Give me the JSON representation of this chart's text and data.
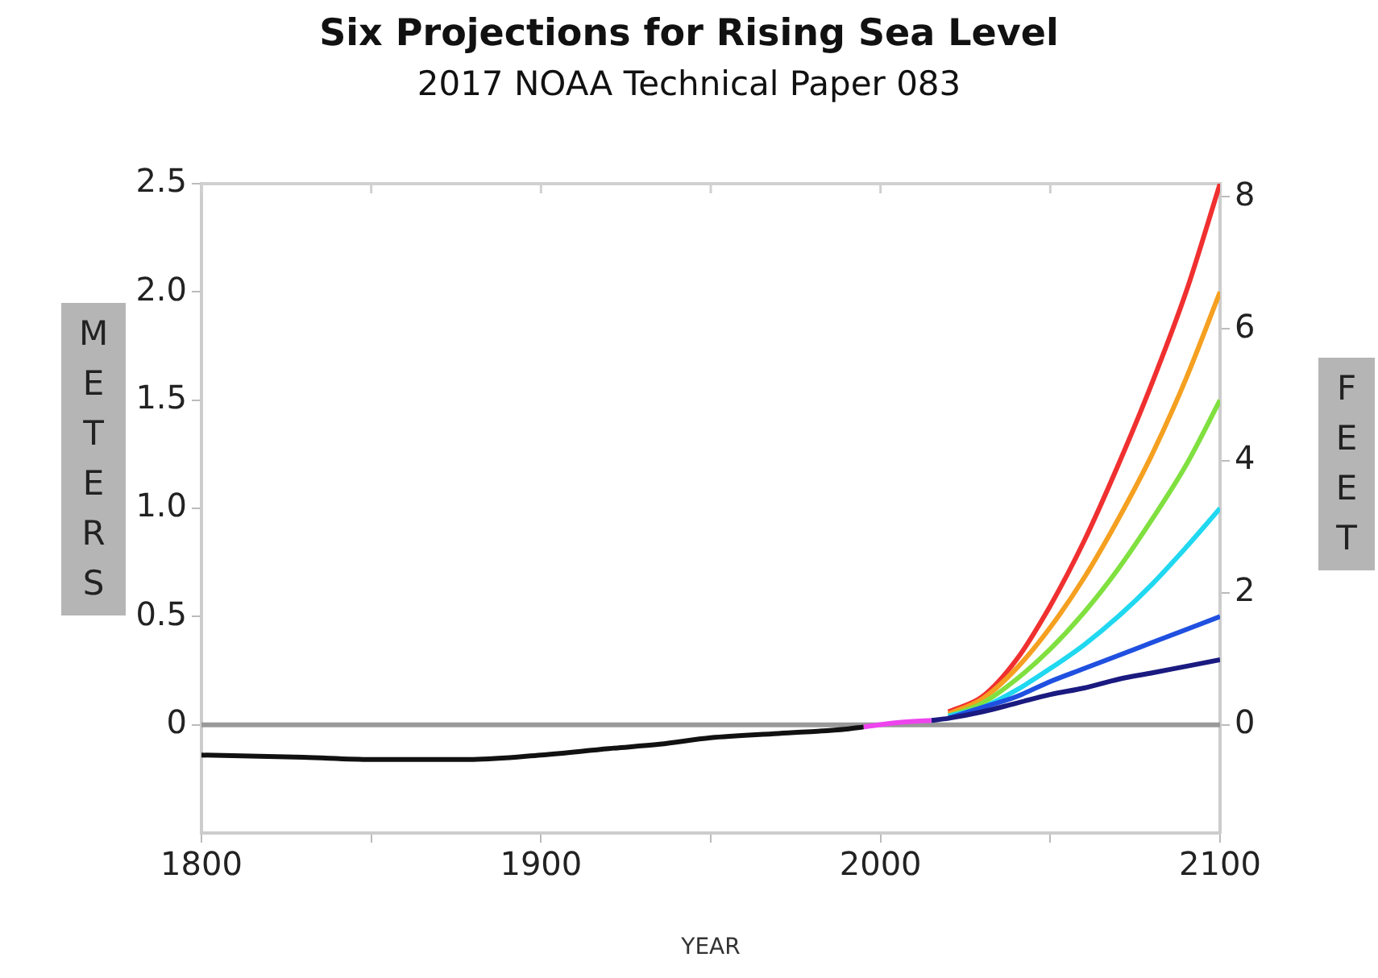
{
  "chart_data": {
    "type": "line",
    "title": "Six Projections for Rising Sea Level",
    "subtitle": "2017 NOAA Technical Paper 083",
    "xlabel": "YEAR",
    "ylabel": "METERS",
    "y2label": "FEET",
    "xlim": [
      1800,
      2100
    ],
    "xticks": [
      1800,
      {
        "value": 1850,
        "label": null
      },
      1900,
      {
        "value": 1950,
        "label": null
      },
      2000,
      {
        "value": 2050,
        "label": null
      },
      2100
    ],
    "ylim": [
      -0.5,
      2.5
    ],
    "yticks": [
      0,
      0.5,
      {
        "value": 1,
        "label": "1.0"
      },
      1.5,
      {
        "value": 2,
        "label": "2.0"
      },
      2.5
    ],
    "y2lim": [
      -1.64,
      8.2
    ],
    "y2ticks": [
      0,
      2,
      4,
      6,
      8
    ],
    "ref_lines": [
      {
        "axis": "y",
        "value": 0,
        "color": "#999999"
      }
    ],
    "series": [
      {
        "color": "#111111",
        "x": [
          1800,
          1830,
          1850,
          1880,
          1900,
          1920,
          1935,
          1950,
          1970,
          1990,
          1995
        ],
        "values": [
          -0.14,
          -0.15,
          -0.16,
          -0.16,
          -0.14,
          -0.11,
          -0.09,
          -0.06,
          -0.04,
          -0.02,
          -0.01
        ]
      },
      {
        "color": "#ee44ee",
        "x": [
          1995,
          2005,
          2015
        ],
        "values": [
          -0.01,
          0.01,
          0.02
        ]
      },
      {
        "color": "#1a1a80",
        "x": [
          2015,
          2020,
          2030,
          2040,
          2050,
          2060,
          2070,
          2080,
          2090,
          2100
        ],
        "values": [
          0.02,
          0.03,
          0.06,
          0.1,
          0.14,
          0.17,
          0.21,
          0.24,
          0.27,
          0.3
        ]
      },
      {
        "color": "#2050e0",
        "x": [
          2020,
          2030,
          2040,
          2050,
          2060,
          2070,
          2080,
          2090,
          2100
        ],
        "values": [
          0.03,
          0.08,
          0.13,
          0.2,
          0.26,
          0.32,
          0.38,
          0.44,
          0.5
        ]
      },
      {
        "color": "#20d8f0",
        "x": [
          2020,
          2030,
          2040,
          2050,
          2060,
          2070,
          2080,
          2090,
          2100
        ],
        "values": [
          0.04,
          0.08,
          0.16,
          0.26,
          0.37,
          0.5,
          0.65,
          0.82,
          1.0
        ]
      },
      {
        "color": "#80e040",
        "x": [
          2020,
          2030,
          2040,
          2050,
          2060,
          2070,
          2080,
          2090,
          2100
        ],
        "values": [
          0.04,
          0.1,
          0.21,
          0.35,
          0.52,
          0.72,
          0.95,
          1.2,
          1.5
        ]
      },
      {
        "color": "#f5a020",
        "x": [
          2020,
          2030,
          2040,
          2050,
          2060,
          2070,
          2080,
          2090,
          2100
        ],
        "values": [
          0.05,
          0.12,
          0.26,
          0.45,
          0.68,
          0.95,
          1.25,
          1.6,
          2.0
        ]
      },
      {
        "color": "#f03030",
        "x": [
          2020,
          2030,
          2040,
          2050,
          2060,
          2070,
          2080,
          2090,
          2100
        ],
        "values": [
          0.06,
          0.13,
          0.3,
          0.55,
          0.85,
          1.2,
          1.58,
          2.0,
          2.5
        ]
      }
    ]
  }
}
